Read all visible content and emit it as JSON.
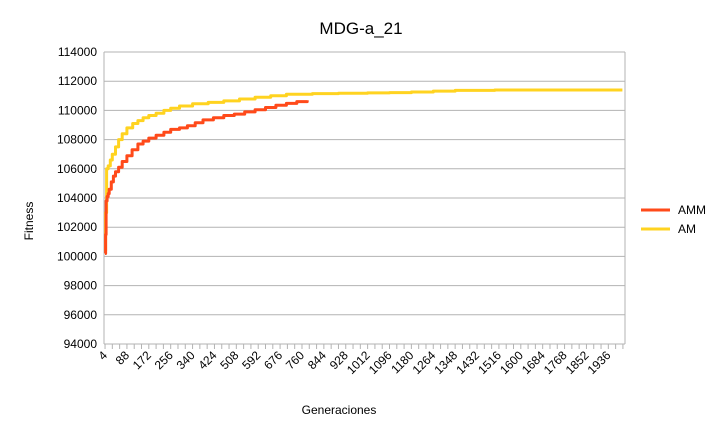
{
  "chart_data": {
    "type": "line",
    "title": "MDG-a_21",
    "xlabel": "Generaciones",
    "ylabel": "Fitness",
    "ylim": [
      94000,
      114000
    ],
    "xlim": [
      0,
      2000
    ],
    "y_ticks": [
      "94000",
      "96000",
      "98000",
      "100000",
      "102000",
      "104000",
      "106000",
      "108000",
      "110000",
      "112000",
      "114000"
    ],
    "x_ticks": [
      "4",
      "88",
      "172",
      "256",
      "340",
      "424",
      "508",
      "592",
      "676",
      "760",
      "844",
      "928",
      "1012",
      "1096",
      "1180",
      "1264",
      "1348",
      "1432",
      "1516",
      "1600",
      "1684",
      "1768",
      "1852",
      "1936"
    ],
    "grid": "horizontal",
    "legend_position": "right",
    "series": [
      {
        "name": "AMM",
        "color": "#ff4a1a",
        "x": [
          4,
          6,
          8,
          12,
          16,
          20,
          28,
          36,
          44,
          56,
          70,
          88,
          108,
          130,
          150,
          172,
          200,
          230,
          256,
          290,
          320,
          350,
          380,
          420,
          460,
          500,
          540,
          580,
          620,
          660,
          700,
          740,
          780
        ],
        "y": [
          100200,
          101500,
          103800,
          104100,
          104300,
          104600,
          105100,
          105500,
          105800,
          106100,
          106500,
          106900,
          107300,
          107700,
          107900,
          108100,
          108300,
          108500,
          108700,
          108800,
          108950,
          109150,
          109350,
          109500,
          109650,
          109750,
          109900,
          110050,
          110200,
          110350,
          110480,
          110600,
          110700
        ]
      },
      {
        "name": "AM",
        "color": "#ffd320",
        "x": [
          4,
          6,
          10,
          16,
          24,
          32,
          44,
          56,
          70,
          88,
          110,
          130,
          150,
          172,
          200,
          230,
          256,
          290,
          340,
          400,
          460,
          520,
          580,
          640,
          700,
          800,
          900,
          1012,
          1096,
          1180,
          1264,
          1348,
          1500,
          1700,
          1936,
          1990
        ],
        "y": [
          100400,
          103000,
          106000,
          106200,
          106600,
          107000,
          107500,
          108000,
          108400,
          108800,
          109100,
          109300,
          109500,
          109650,
          109800,
          110000,
          110150,
          110300,
          110450,
          110550,
          110650,
          110780,
          110900,
          111000,
          111100,
          111150,
          111180,
          111200,
          111220,
          111260,
          111320,
          111370,
          111400,
          111400,
          111400,
          111400
        ]
      }
    ]
  }
}
